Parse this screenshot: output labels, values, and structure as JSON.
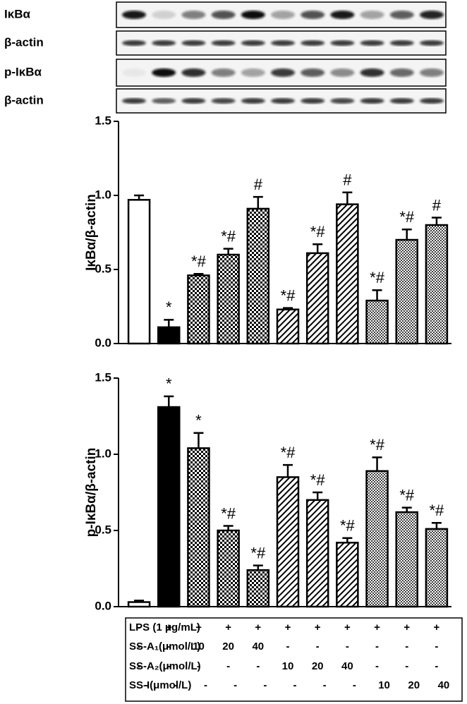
{
  "blots": [
    "IκBα",
    "β-actin",
    "p-IκBα",
    "β-actin"
  ],
  "chart_data": [
    {
      "type": "bar",
      "y_label": "IκBα/β-actin",
      "values": [
        0.97,
        0.11,
        0.46,
        0.6,
        0.91,
        0.23,
        0.61,
        0.94,
        0.29,
        0.7,
        0.8
      ],
      "errors": [
        0.03,
        0.05,
        0.01,
        0.04,
        0.08,
        0.01,
        0.06,
        0.08,
        0.07,
        0.07,
        0.05
      ],
      "annotations": [
        null,
        "*",
        "*#",
        "*#",
        "#",
        "*#",
        "*#",
        "#",
        "*#",
        "*#",
        "#"
      ],
      "bar_styles": [
        "white",
        "black",
        "checker",
        "checker",
        "checker",
        "hatch",
        "hatch",
        "hatch",
        "dots",
        "dots",
        "dots"
      ],
      "ylim": [
        0,
        1.5
      ],
      "yticks": [
        {
          "value": 0,
          "label": "0.0"
        },
        {
          "value": 0.5,
          "label": "0.5"
        },
        {
          "value": 1,
          "label": "1.0"
        },
        {
          "value": 1.5,
          "label": "1.5"
        }
      ]
    },
    {
      "type": "bar",
      "y_label": "p-IκBα/β-actin",
      "values": [
        0.03,
        1.31,
        1.04,
        0.5,
        0.24,
        0.85,
        0.7,
        0.42,
        0.89,
        0.62,
        0.51
      ],
      "errors": [
        0.01,
        0.07,
        0.1,
        0.03,
        0.03,
        0.08,
        0.05,
        0.03,
        0.09,
        0.03,
        0.04
      ],
      "annotations": [
        null,
        "*",
        "*",
        "*#",
        "*#",
        "*#",
        "*#",
        "*#",
        "*#",
        "*#",
        "*#"
      ],
      "bar_styles": [
        "white",
        "black",
        "checker",
        "checker",
        "checker",
        "hatch",
        "hatch",
        "hatch",
        "dots",
        "dots",
        "dots"
      ],
      "ylim": [
        0,
        1.5
      ],
      "yticks": [
        {
          "value": 0,
          "label": "0.0"
        },
        {
          "value": 0.5,
          "label": "0.5"
        },
        {
          "value": 1,
          "label": "1.0"
        },
        {
          "value": 1.5,
          "label": "1.5"
        }
      ]
    }
  ],
  "table": {
    "rows": [
      {
        "label": "LPS (1 μg/mL)",
        "cells": [
          "-",
          "+",
          "+",
          "+",
          "+",
          "+",
          "+",
          "+",
          "+",
          "+",
          "+"
        ]
      },
      {
        "label": "SS-A₁(μmol/L)",
        "cells": [
          "-",
          "-",
          "10",
          "20",
          "40",
          "-",
          "-",
          "-",
          "-",
          "-",
          "-"
        ]
      },
      {
        "label": "SS-A₂(μmol/L)",
        "cells": [
          "-",
          "-",
          "-",
          "-",
          "-",
          "10",
          "20",
          "40",
          "-",
          "-",
          "-"
        ]
      },
      {
        "label": "SS-I(μmol/L)",
        "cells": [
          "-",
          "-",
          "-",
          "-",
          "-",
          "-",
          "-",
          "-",
          "10",
          "20",
          "40"
        ]
      }
    ]
  }
}
